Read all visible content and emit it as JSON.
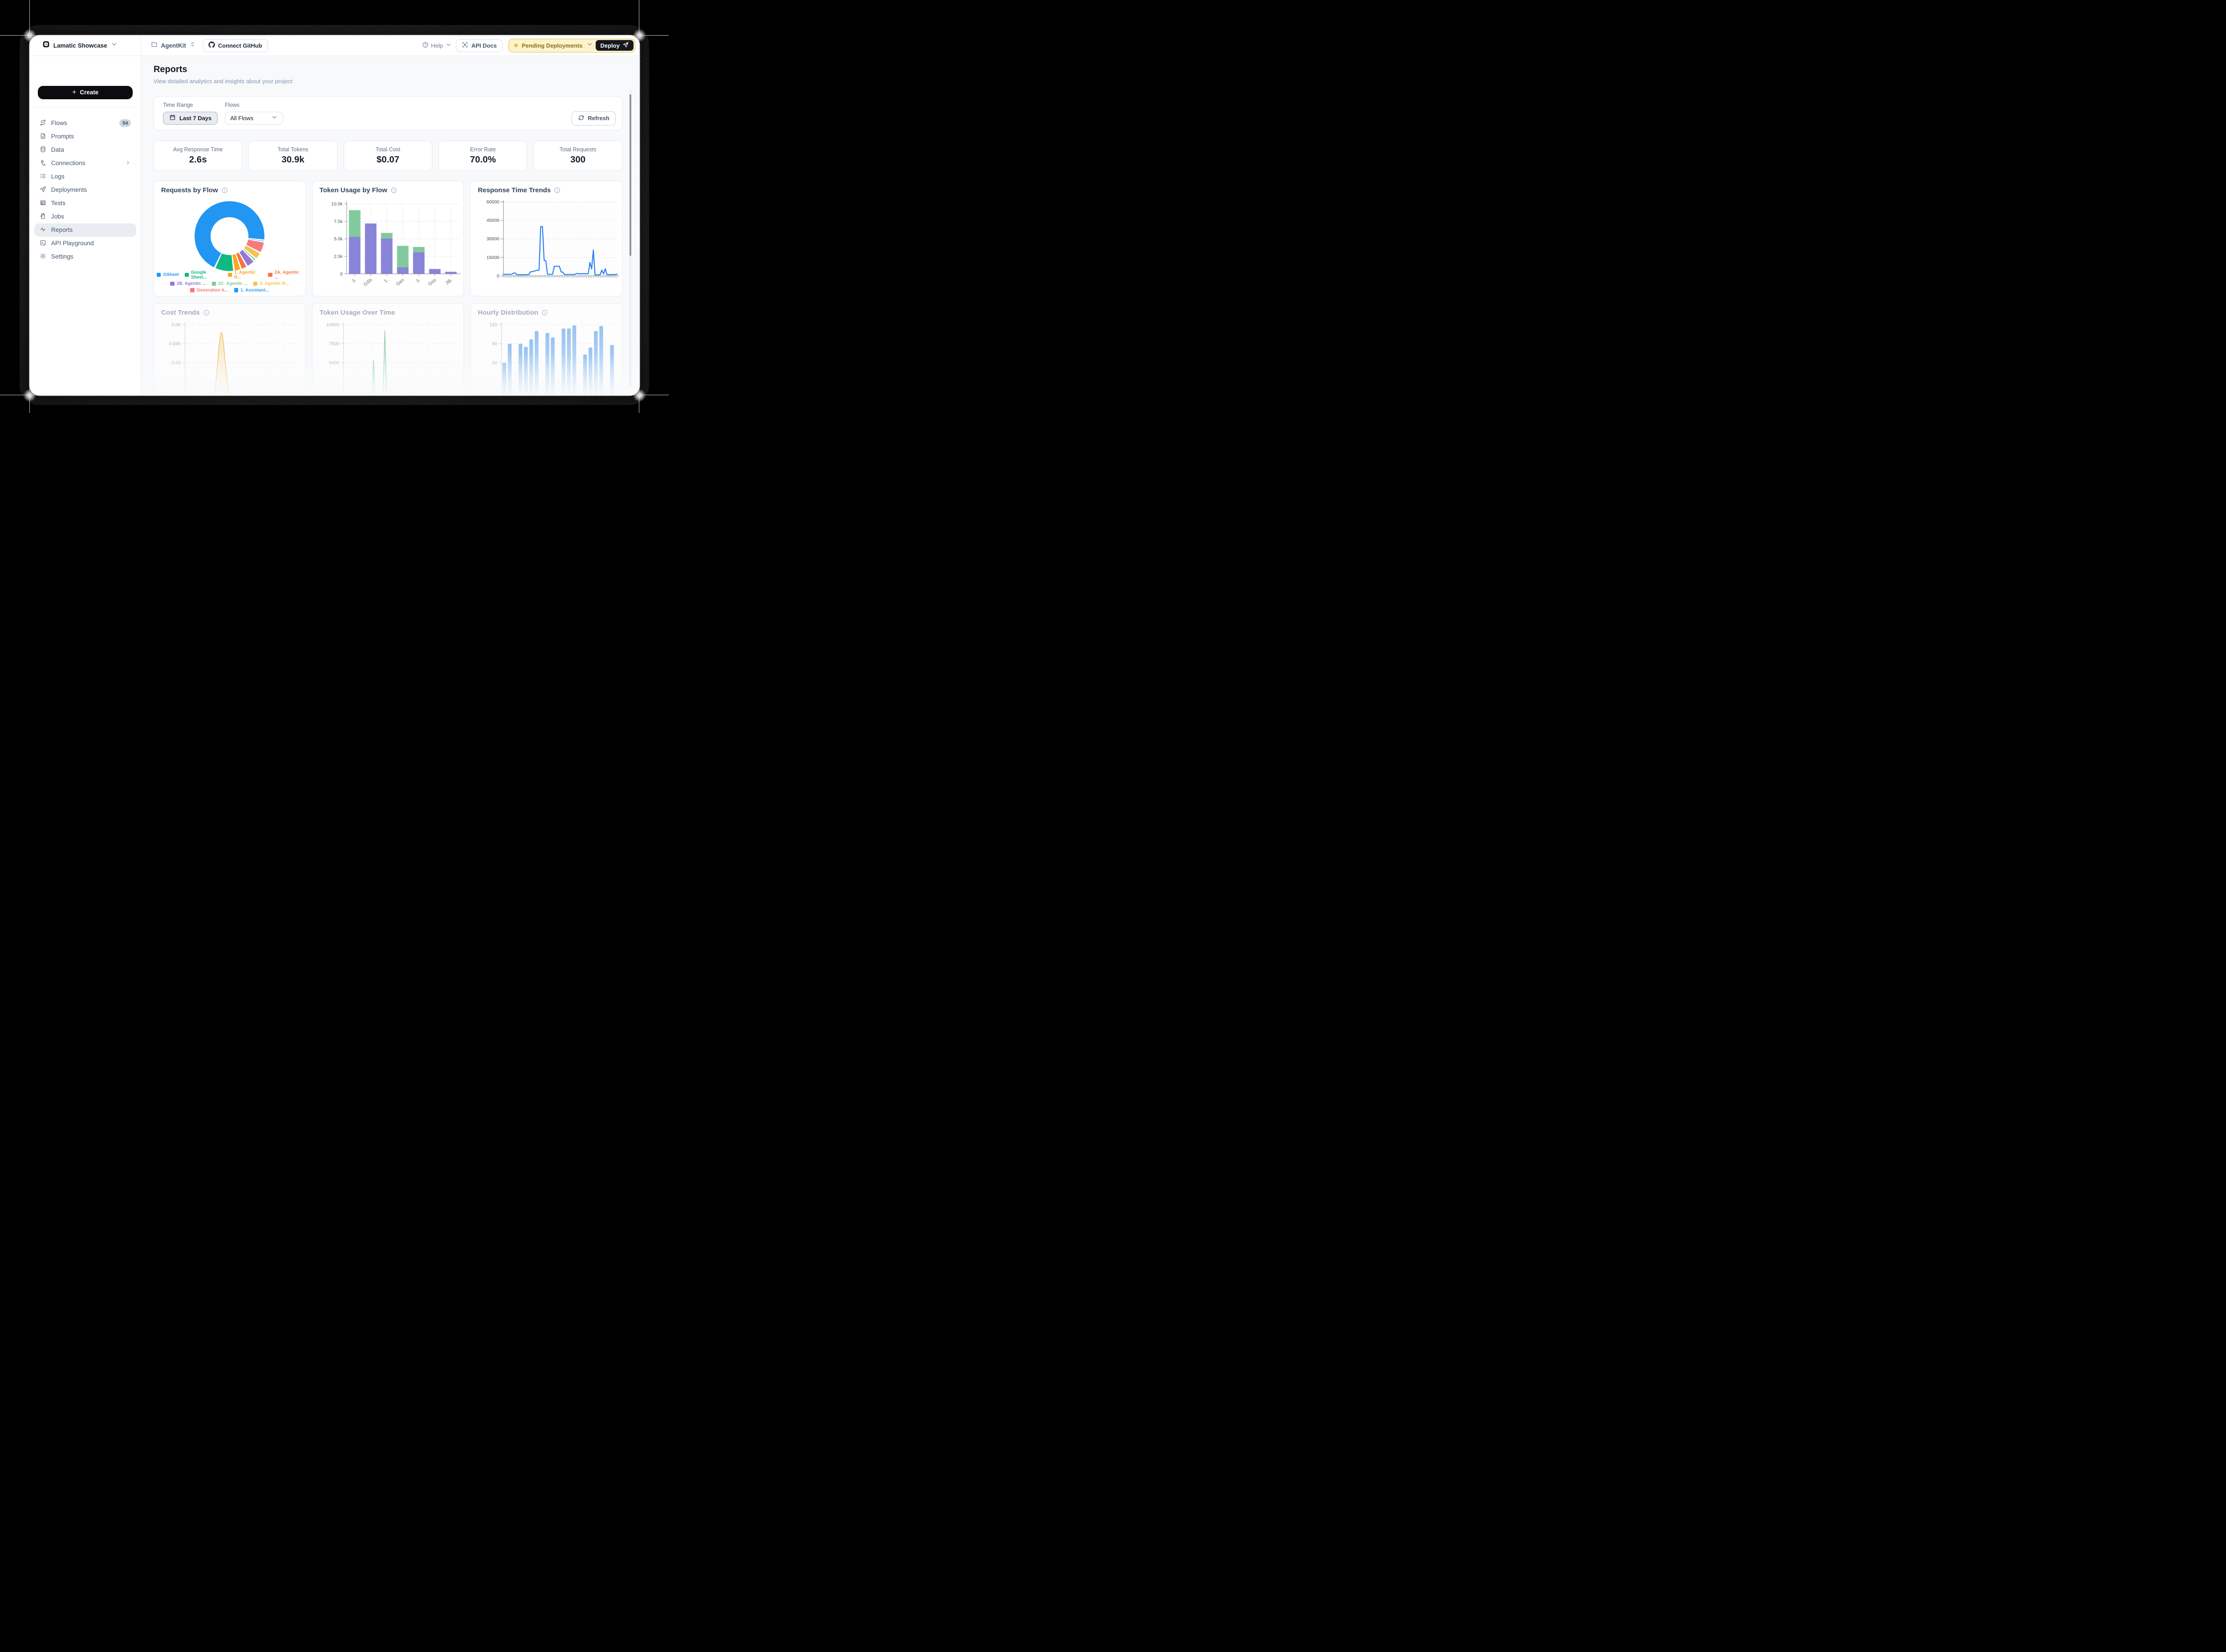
{
  "topbar": {
    "workspace": "Lamatic Showcase",
    "project": "AgentKit",
    "connect_github_label": "Connect GitHub",
    "help_label": "Help",
    "api_docs_label": "API Docs",
    "pending_label": "Pending Deployments",
    "deploy_label": "Deploy",
    "pending_colors": {
      "bg": "#FBF3CE",
      "border": "#E2C23B",
      "text": "#8E6E14",
      "dot": "#ECBE3D"
    }
  },
  "sidebar": {
    "create_label": "Create",
    "items": [
      {
        "label": "Flows",
        "icon": "flows",
        "badge": "54"
      },
      {
        "label": "Prompts",
        "icon": "prompts"
      },
      {
        "label": "Data",
        "icon": "data"
      },
      {
        "label": "Connections",
        "icon": "connections",
        "chevron": true
      },
      {
        "label": "Logs",
        "icon": "logs"
      },
      {
        "label": "Deployments",
        "icon": "deployments"
      },
      {
        "label": "Tests",
        "icon": "tests"
      },
      {
        "label": "Jobs",
        "icon": "jobs"
      },
      {
        "label": "Reports",
        "icon": "reports",
        "active": true
      },
      {
        "label": "API Playground",
        "icon": "api"
      },
      {
        "label": "Settings",
        "icon": "settings"
      }
    ]
  },
  "page": {
    "title": "Reports",
    "subtitle": "View detailed analytics and insights about your project"
  },
  "filters": {
    "time_range_label": "Time Range",
    "time_range_value": "Last 7 Days",
    "flows_label": "Flows",
    "flows_value": "All Flows",
    "refresh_label": "Refresh"
  },
  "stats": [
    {
      "label": "Avg Response Time",
      "value": "2.6s"
    },
    {
      "label": "Total Tokens",
      "value": "30.9k"
    },
    {
      "label": "Total Cost",
      "value": "$0.07"
    },
    {
      "label": "Error Rate",
      "value": "70.0%"
    },
    {
      "label": "Total Requests",
      "value": "300"
    }
  ],
  "chart_data": [
    {
      "type": "pie",
      "title": "Requests by Flow",
      "has_info": true,
      "donut": true,
      "total": 300,
      "end_angle_of_first": 97,
      "legend_rows": [
        4,
        3,
        2
      ],
      "series": [
        {
          "name": "GSheet",
          "value": 210,
          "color": "#2196F3"
        },
        {
          "name": "Google Sheet...",
          "value": 27,
          "color": "#10B981"
        },
        {
          "name": "1. Agentic R...",
          "value": 10,
          "color": "#F6A724"
        },
        {
          "name": "2A. Agentic ...",
          "value": 9,
          "color": "#F97442"
        },
        {
          "name": "2B. Agentic ...",
          "value": 12,
          "color": "#9579D6"
        },
        {
          "name": "2C. Agentic ...",
          "value": 4,
          "color": "#85C79C"
        },
        {
          "name": "3. Agentic R...",
          "value": 10,
          "color": "#F8C14D"
        },
        {
          "name": "Generation A...",
          "value": 16,
          "color": "#F8797E"
        },
        {
          "name": "1. Assistant...",
          "value": 2,
          "color": "#2E9BF6"
        }
      ]
    },
    {
      "type": "bar",
      "title": "Token Usage by Flow",
      "has_info": true,
      "stacked": true,
      "categories": [
        "3.",
        "GSh",
        "1.",
        "Gen",
        "3.",
        "Goo",
        "2B."
      ],
      "series": [
        {
          "name": "prompt tokens",
          "color": "#8884d8",
          "values": [
            5300,
            7200,
            5050,
            950,
            3100,
            700,
            300
          ]
        },
        {
          "name": "completion tokens",
          "color": "#82ca9d",
          "values": [
            3800,
            0,
            800,
            3050,
            750,
            0,
            0
          ]
        }
      ],
      "ylim": [
        0,
        10000
      ],
      "yticks": [
        {
          "v": 0,
          "label": "0"
        },
        {
          "v": 2500,
          "label": "2.5k"
        },
        {
          "v": 5000,
          "label": "5.0k"
        },
        {
          "v": 7500,
          "label": "7.5k"
        },
        {
          "v": 10000,
          "label": "10.0k"
        }
      ]
    },
    {
      "type": "line",
      "title": "Response Time Trends",
      "has_info": true,
      "color": "#2B7FF2",
      "ylim": [
        0,
        60000
      ],
      "yticks": [
        {
          "v": 0,
          "label": "0"
        },
        {
          "v": 15000,
          "label": "15000"
        },
        {
          "v": 30000,
          "label": "30000"
        },
        {
          "v": 45000,
          "label": "45000"
        },
        {
          "v": 60000,
          "label": "60000"
        }
      ],
      "values": [
        1300,
        1250,
        1300,
        1250,
        1300,
        1350,
        2300,
        2250,
        950,
        900,
        900,
        950,
        900,
        950,
        1000,
        1100,
        3300,
        3500,
        3700,
        4300,
        4500,
        4600,
        40000,
        40000,
        12500,
        12300,
        1300,
        1250,
        1300,
        1300,
        7800,
        7800,
        7800,
        7800,
        3200,
        3000,
        1100,
        1050,
        1100,
        1100,
        1100,
        1050,
        1100,
        1900,
        1800,
        1700,
        1700,
        1750,
        1700,
        1700,
        1750,
        11000,
        5600,
        21000,
        900,
        850,
        900,
        900,
        4700,
        1500,
        5800,
        1000,
        1000,
        1050,
        1000,
        1000,
        1100,
        1400
      ]
    },
    {
      "type": "area",
      "title": "Cost Trends",
      "has_info": true,
      "line_color": "#F0B24A",
      "fill_color": "#FBE2AC",
      "ytick_top": 0.06,
      "ytick_step": 0.015,
      "ytick_labels": [
        "0.06",
        "0.045",
        "0.03"
      ],
      "points": [
        [
          0,
          0
        ],
        [
          0.22,
          0
        ],
        [
          0.24,
          0.001
        ],
        [
          0.26,
          0.006
        ],
        [
          0.28,
          0.021
        ],
        [
          0.3,
          0.043
        ],
        [
          0.315,
          0.053
        ],
        [
          0.32,
          0.054
        ],
        [
          0.33,
          0.052
        ],
        [
          0.34,
          0.045
        ],
        [
          0.36,
          0.026
        ],
        [
          0.38,
          0.01
        ],
        [
          0.4,
          0.003
        ],
        [
          0.42,
          0.001
        ],
        [
          0.44,
          0
        ],
        [
          1,
          0
        ]
      ]
    },
    {
      "type": "area",
      "title": "Token Usage Over Time",
      "has_info": false,
      "line_color": "#7CC99A",
      "fill_color": "#D9F0E2",
      "ytick_top": 10000,
      "ytick_step": 2500,
      "ytick_labels": [
        "10000",
        "7500",
        "5000"
      ],
      "points": [
        [
          0,
          0
        ],
        [
          0.25,
          0
        ],
        [
          0.265,
          5300
        ],
        [
          0.28,
          0
        ],
        [
          0.34,
          200
        ],
        [
          0.35,
          1500
        ],
        [
          0.358,
          5200
        ],
        [
          0.365,
          9200
        ],
        [
          0.372,
          5200
        ],
        [
          0.38,
          1500
        ],
        [
          0.39,
          200
        ],
        [
          0.4,
          0
        ],
        [
          1,
          0
        ]
      ]
    },
    {
      "type": "hourly-bar",
      "title": "Hourly Distribution",
      "has_info": true,
      "bar_top_color": "#7FB5EF",
      "bar_bottom_color": "#D9EBFC",
      "ytick_top": 120,
      "ytick_step": 30,
      "ytick_labels": [
        "120",
        "90",
        "60"
      ],
      "values": [
        60,
        90,
        0,
        90,
        85,
        97,
        110,
        0,
        107,
        100,
        0,
        114,
        114,
        119,
        0,
        73,
        84,
        110,
        118,
        0,
        88
      ]
    }
  ]
}
